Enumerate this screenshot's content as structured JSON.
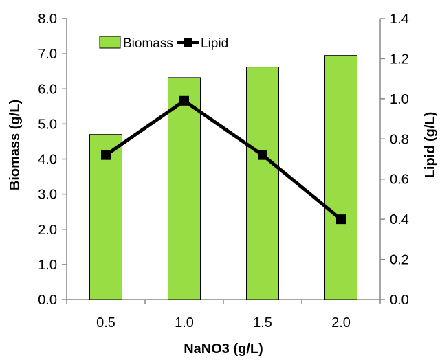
{
  "chart_data": {
    "type": "bar",
    "title": "",
    "xlabel": "NaNO3 (g/L)",
    "ylabel": "Biomass (g/L)",
    "y2label": "Lipid (g/L)",
    "categories": [
      "0.5",
      "1.0",
      "1.5",
      "2.0"
    ],
    "ylim": [
      0,
      8
    ],
    "y2lim": [
      0,
      1.4
    ],
    "yticks": [
      "0.0",
      "1.0",
      "2.0",
      "3.0",
      "4.0",
      "5.0",
      "6.0",
      "7.0",
      "8.0"
    ],
    "y2ticks": [
      "0.0",
      "0.2",
      "0.4",
      "0.6",
      "0.8",
      "1.0",
      "1.2",
      "1.4"
    ],
    "grid": false,
    "legend_position": "top-left",
    "series": [
      {
        "name": "Biomass",
        "type": "bar",
        "axis": "left",
        "color": "#99dd44",
        "values": [
          4.7,
          6.32,
          6.62,
          6.95
        ]
      },
      {
        "name": "Lipid",
        "type": "line",
        "axis": "right",
        "color": "#000000",
        "marker": "square",
        "values": [
          0.72,
          0.99,
          0.72,
          0.4
        ]
      }
    ]
  }
}
